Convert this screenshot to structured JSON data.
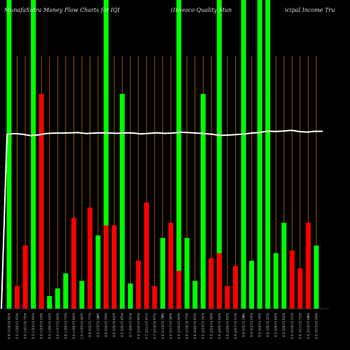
{
  "header": {
    "left": "MunafaSutra  Money Flow  Charts for IQI",
    "middle": "(Invesco   Quality Mun",
    "right": "icipal Income   Tru"
  },
  "chart_data": {
    "type": "bar",
    "note_levels": "bar values are relative 0-100 of plot height",
    "colors": {
      "up": "#00ff00",
      "down": "#ff0000",
      "highlight": "#00ff00",
      "grid": "#b36b00",
      "line": "#ffffff"
    },
    "highlight_columns": [
      0,
      3,
      12,
      21,
      26,
      29,
      31,
      32
    ],
    "bars": [
      {
        "v": 85,
        "c": "up"
      },
      {
        "v": 9,
        "c": "down"
      },
      {
        "v": 25,
        "c": "down"
      },
      {
        "v": 12,
        "c": "up"
      },
      {
        "v": 85,
        "c": "down"
      },
      {
        "v": 5,
        "c": "up"
      },
      {
        "v": 8,
        "c": "up"
      },
      {
        "v": 14,
        "c": "up"
      },
      {
        "v": 36,
        "c": "down"
      },
      {
        "v": 11,
        "c": "up"
      },
      {
        "v": 40,
        "c": "down"
      },
      {
        "v": 29,
        "c": "up"
      },
      {
        "v": 33,
        "c": "down"
      },
      {
        "v": 33,
        "c": "down"
      },
      {
        "v": 85,
        "c": "up"
      },
      {
        "v": 10,
        "c": "up"
      },
      {
        "v": 19,
        "c": "down"
      },
      {
        "v": 42,
        "c": "down"
      },
      {
        "v": 9,
        "c": "down"
      },
      {
        "v": 28,
        "c": "up"
      },
      {
        "v": 34,
        "c": "down"
      },
      {
        "v": 15,
        "c": "down"
      },
      {
        "v": 28,
        "c": "up"
      },
      {
        "v": 11,
        "c": "up"
      },
      {
        "v": 85,
        "c": "up"
      },
      {
        "v": 20,
        "c": "down"
      },
      {
        "v": 22,
        "c": "down"
      },
      {
        "v": 9,
        "c": "down"
      },
      {
        "v": 17,
        "c": "down"
      },
      {
        "v": 10,
        "c": "up"
      },
      {
        "v": 19,
        "c": "up"
      },
      {
        "v": 85,
        "c": "up"
      },
      {
        "v": 85,
        "c": "up"
      },
      {
        "v": 22,
        "c": "up"
      },
      {
        "v": 34,
        "c": "up"
      },
      {
        "v": 23,
        "c": "down"
      },
      {
        "v": 16,
        "c": "down"
      },
      {
        "v": 34,
        "c": "down"
      },
      {
        "v": 25,
        "c": "up"
      }
    ],
    "line": [
      69,
      69.3,
      69,
      68.5,
      68.8,
      69.3,
      69.5,
      69.5,
      69.6,
      69.7,
      69.3,
      69.5,
      69.6,
      69.5,
      69.4,
      69.6,
      69.5,
      69.2,
      69.4,
      69.6,
      69.4,
      69.5,
      69.8,
      69.7,
      69.5,
      69.3,
      69.0,
      68.6,
      68.7,
      68.9,
      69.1,
      69.5,
      69.7,
      70.3,
      70.1,
      70.3,
      70.6,
      70.1,
      69.9,
      70.2,
      70.2
    ],
    "line_start_level": 0,
    "x_tick_labels": [
      "0.8 1/19/15 85%",
      "2.0 1/20/15 43%",
      "4.0 1/21/15 75%",
      "2.3 1/22/15 64%",
      "0.4 1/23/15 59%",
      "0.5 1/26/15 44%",
      "0.6 1/27/15 48%",
      "0.8 1/28/15 72%",
      "0.6 1/29/15 60%",
      "1.0 1/30/15 46%",
      "0.8 2/2/15 77%",
      "0.5 2/3/15 52%",
      "0.6 2/4/15 59%",
      "0.6 2/5/15 62%",
      "0.5 2/6/15 65%",
      "0.7 2/9/15 55%",
      "0.4 2/10/15 60%",
      "0.7 2/11/15 81%",
      "0.7 2/12/15 67%",
      "0.8 2/13/15 73%",
      "0.9 2/17/15 58%",
      "0.4 2/18/15 48%",
      "0.6 2/19/15 75%",
      "0.6 2/20/15 63%",
      "0.5 2/23/15 54%",
      "0.5 2/24/15 58%",
      "0.4 2/25/15 64%",
      "0.6 2/26/15 82%",
      "0.4 2/27/15 51%",
      "0.6 3/2/15 53%",
      "0.4 3/3/15 54%",
      "0.5 3/4/15 76%",
      "0.6 3/5/15 55%",
      "0.3 3/6/15 64%",
      "0.5 3/9/15 62%",
      "0.9 3/10/15 51%",
      "0.4 3/11/15 73%",
      "0.4 3/12/15 60%",
      "0.9 3/13/15 59%"
    ],
    "mid_labels": [
      "0",
      "0",
      "0",
      "0"
    ]
  }
}
